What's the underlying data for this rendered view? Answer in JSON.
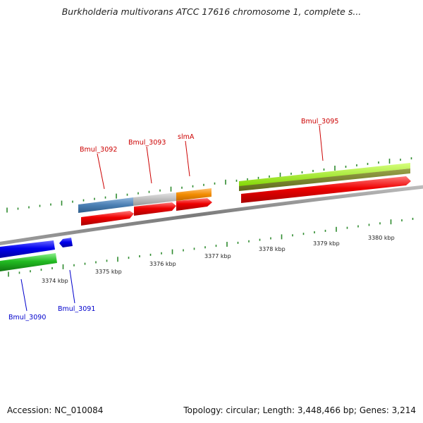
{
  "title": "Burkholderia multivorans ATCC 17616 chromosome 1, complete s...",
  "footer": {
    "accession": "Accession: NC_010084",
    "topology": "Topology: circular; Length: 3,448,466 bp; Genes: 3,214"
  },
  "scale": {
    "labels": [
      "3374 kbp",
      "3375 kbp",
      "3376 kbp",
      "3377 kbp",
      "3378 kbp",
      "3379 kbp",
      "3380 kbp"
    ]
  },
  "genes": [
    {
      "name": "Bmul_3092",
      "strand": "+"
    },
    {
      "name": "Bmul_3093",
      "strand": "+"
    },
    {
      "name": "slmA",
      "strand": "+"
    },
    {
      "name": "Bmul_3095",
      "strand": "+"
    },
    {
      "name": "Bmul_3090",
      "strand": "-"
    },
    {
      "name": "Bmul_3091",
      "strand": "-"
    }
  ],
  "colors": {
    "backbone": "#8a8a8a",
    "cds": "#ee0000",
    "tick": "#2e8b2e",
    "top_label": "#cc0000",
    "bottom_label": "#0000cc"
  }
}
